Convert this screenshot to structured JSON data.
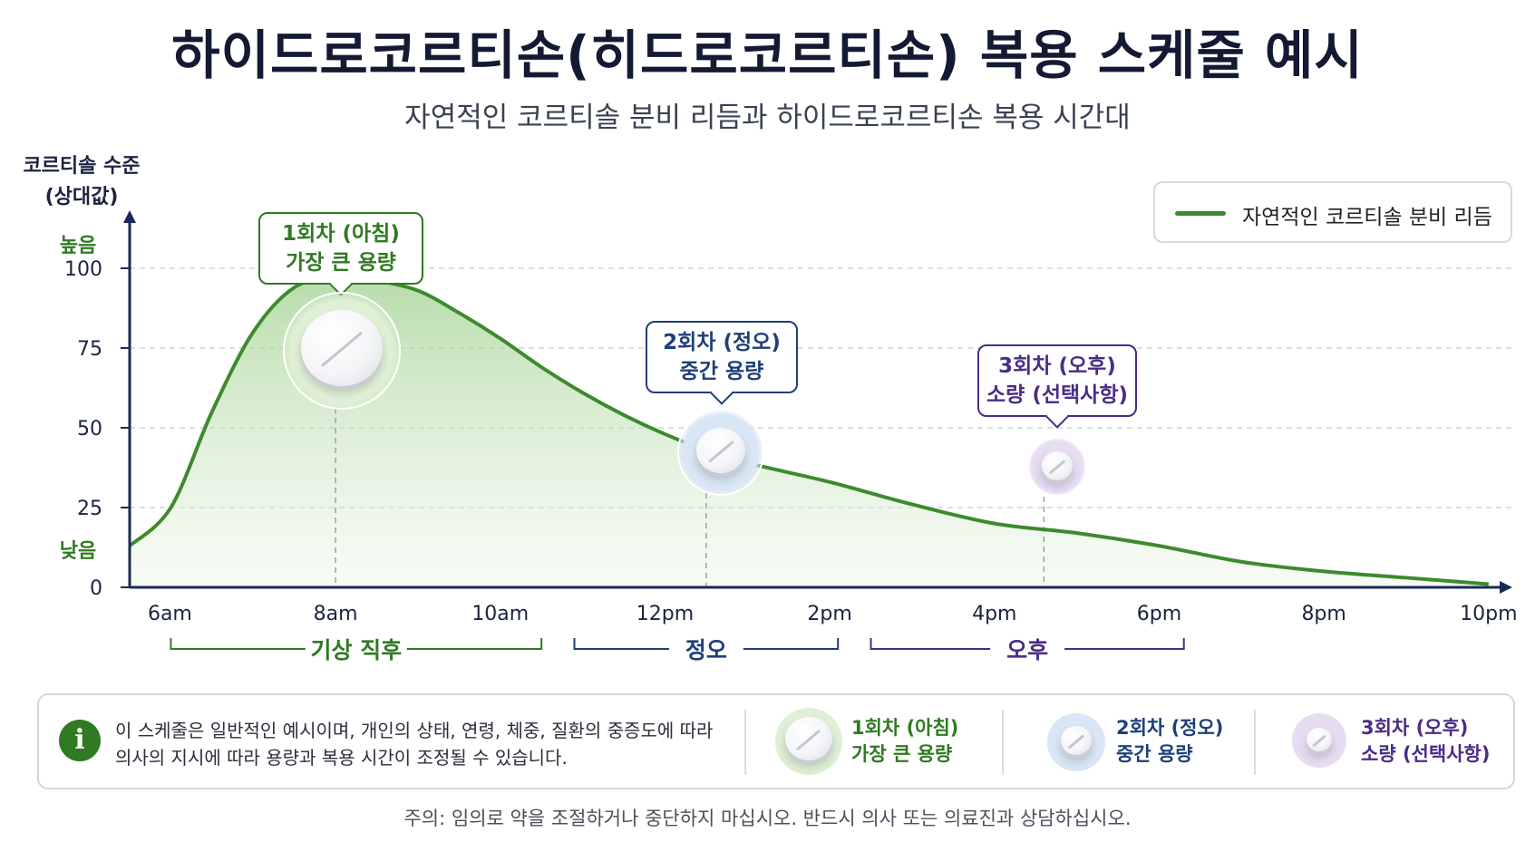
{
  "title": "하이드로코르티손(히드로코르티손) 복용 스케줄 예시",
  "subtitle": "자연적인 코르티솔 분비 리듬과 하이드로코르티손 복용 시간대",
  "y_axis": {
    "title_line1": "코르티솔 수준",
    "title_line2": "(상대값)",
    "high_label": "높음",
    "low_label": "낮음"
  },
  "legend": {
    "label": "자연적인 코르티솔 분비 리듬",
    "color": "#3e8a2e"
  },
  "periods": [
    {
      "label": "기상 직후",
      "color": "#2f7a22"
    },
    {
      "label": "정오",
      "color": "#1f3f78"
    },
    {
      "label": "오후",
      "color": "#4b2c86"
    }
  ],
  "doses": [
    {
      "line1": "1회차 (아침)",
      "line2": "가장 큰 용량",
      "color": "#2f7a22",
      "halo": "#dff0d6"
    },
    {
      "line1": "2회차 (정오)",
      "line2": "중간 용량",
      "color": "#1f3f78",
      "halo": "#d9e6f5"
    },
    {
      "line1": "3회차 (오후)",
      "line2": "소량 (선택사항)",
      "color": "#4b2c86",
      "halo": "#e7ddf3"
    }
  ],
  "info": {
    "icon": "info-icon",
    "line1": "이 스케줄은 일반적인 예시이며, 개인의 상태, 연령, 체중, 질환의 중증도에 따라",
    "line2": "의사의 지시에 따라 용량과 복용 시간이 조정될 수 있습니다."
  },
  "footer": "주의: 임의로 약을 조절하거나 중단하지 마십시오. 반드시 의사 또는 의료진과 상담하십시오.",
  "chart_data": {
    "type": "area",
    "title": "하이드로코르티손(히드로코르티손) 복용 스케줄 예시",
    "ylabel": "코르티솔 수준 (상대값)",
    "xlabel": "",
    "x_tick_labels": [
      "6am",
      "8am",
      "10am",
      "12pm",
      "2pm",
      "4pm",
      "6pm",
      "8pm",
      "10pm"
    ],
    "y_tick_labels": [
      "0",
      "25",
      "50",
      "75",
      "100"
    ],
    "xlim": [
      5.5,
      22.2
    ],
    "ylim": [
      0,
      100
    ],
    "grid": true,
    "legend_position": "top-right",
    "series": [
      {
        "name": "자연적인 코르티솔 분비 리듬",
        "x": [
          5.5,
          6,
          6.5,
          7,
          7.5,
          8,
          8.5,
          9,
          9.5,
          10,
          10.5,
          11,
          11.5,
          12,
          12.5,
          13,
          14,
          15,
          16,
          17,
          18,
          19,
          20,
          21,
          22
        ],
        "y": [
          13,
          25,
          55,
          80,
          94,
          97,
          96,
          93,
          86,
          78,
          69,
          61,
          54,
          48,
          43,
          39,
          33,
          26,
          20,
          17,
          13,
          8,
          5,
          3,
          1
        ]
      }
    ],
    "dose_times": [
      8,
      12.5,
      16.6
    ]
  }
}
